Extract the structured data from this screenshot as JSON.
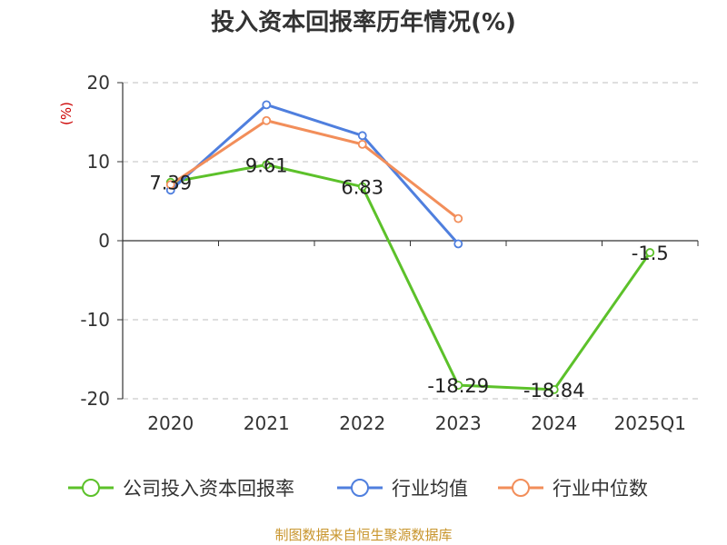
{
  "chart_data": {
    "type": "line",
    "title": "投入资本回报率历年情况(%)",
    "unit_label": "(%)",
    "categories": [
      "2020",
      "2021",
      "2022",
      "2023",
      "2024",
      "2025Q1"
    ],
    "ylim": [
      -20,
      20
    ],
    "yticks": [
      20,
      10,
      0,
      -10,
      -20
    ],
    "grid": true,
    "legend_position": "bottom",
    "series": [
      {
        "name": "公司投入资本回报率",
        "color": "#5cc12a",
        "values": [
          7.39,
          9.61,
          6.83,
          -18.29,
          -18.84,
          -1.5
        ],
        "labels": [
          "7.39",
          "9.61",
          "6.83",
          "-18.29",
          "-18.84",
          "-1.5"
        ]
      },
      {
        "name": "行业均值",
        "color": "#4f7fde",
        "values": [
          6.4,
          17.2,
          13.3,
          -0.4,
          null,
          null
        ]
      },
      {
        "name": "行业中位数",
        "color": "#f28e5a",
        "values": [
          7.1,
          15.2,
          12.2,
          2.8,
          null,
          null
        ]
      }
    ]
  },
  "source_text": "制图数据来自恒生聚源数据库"
}
